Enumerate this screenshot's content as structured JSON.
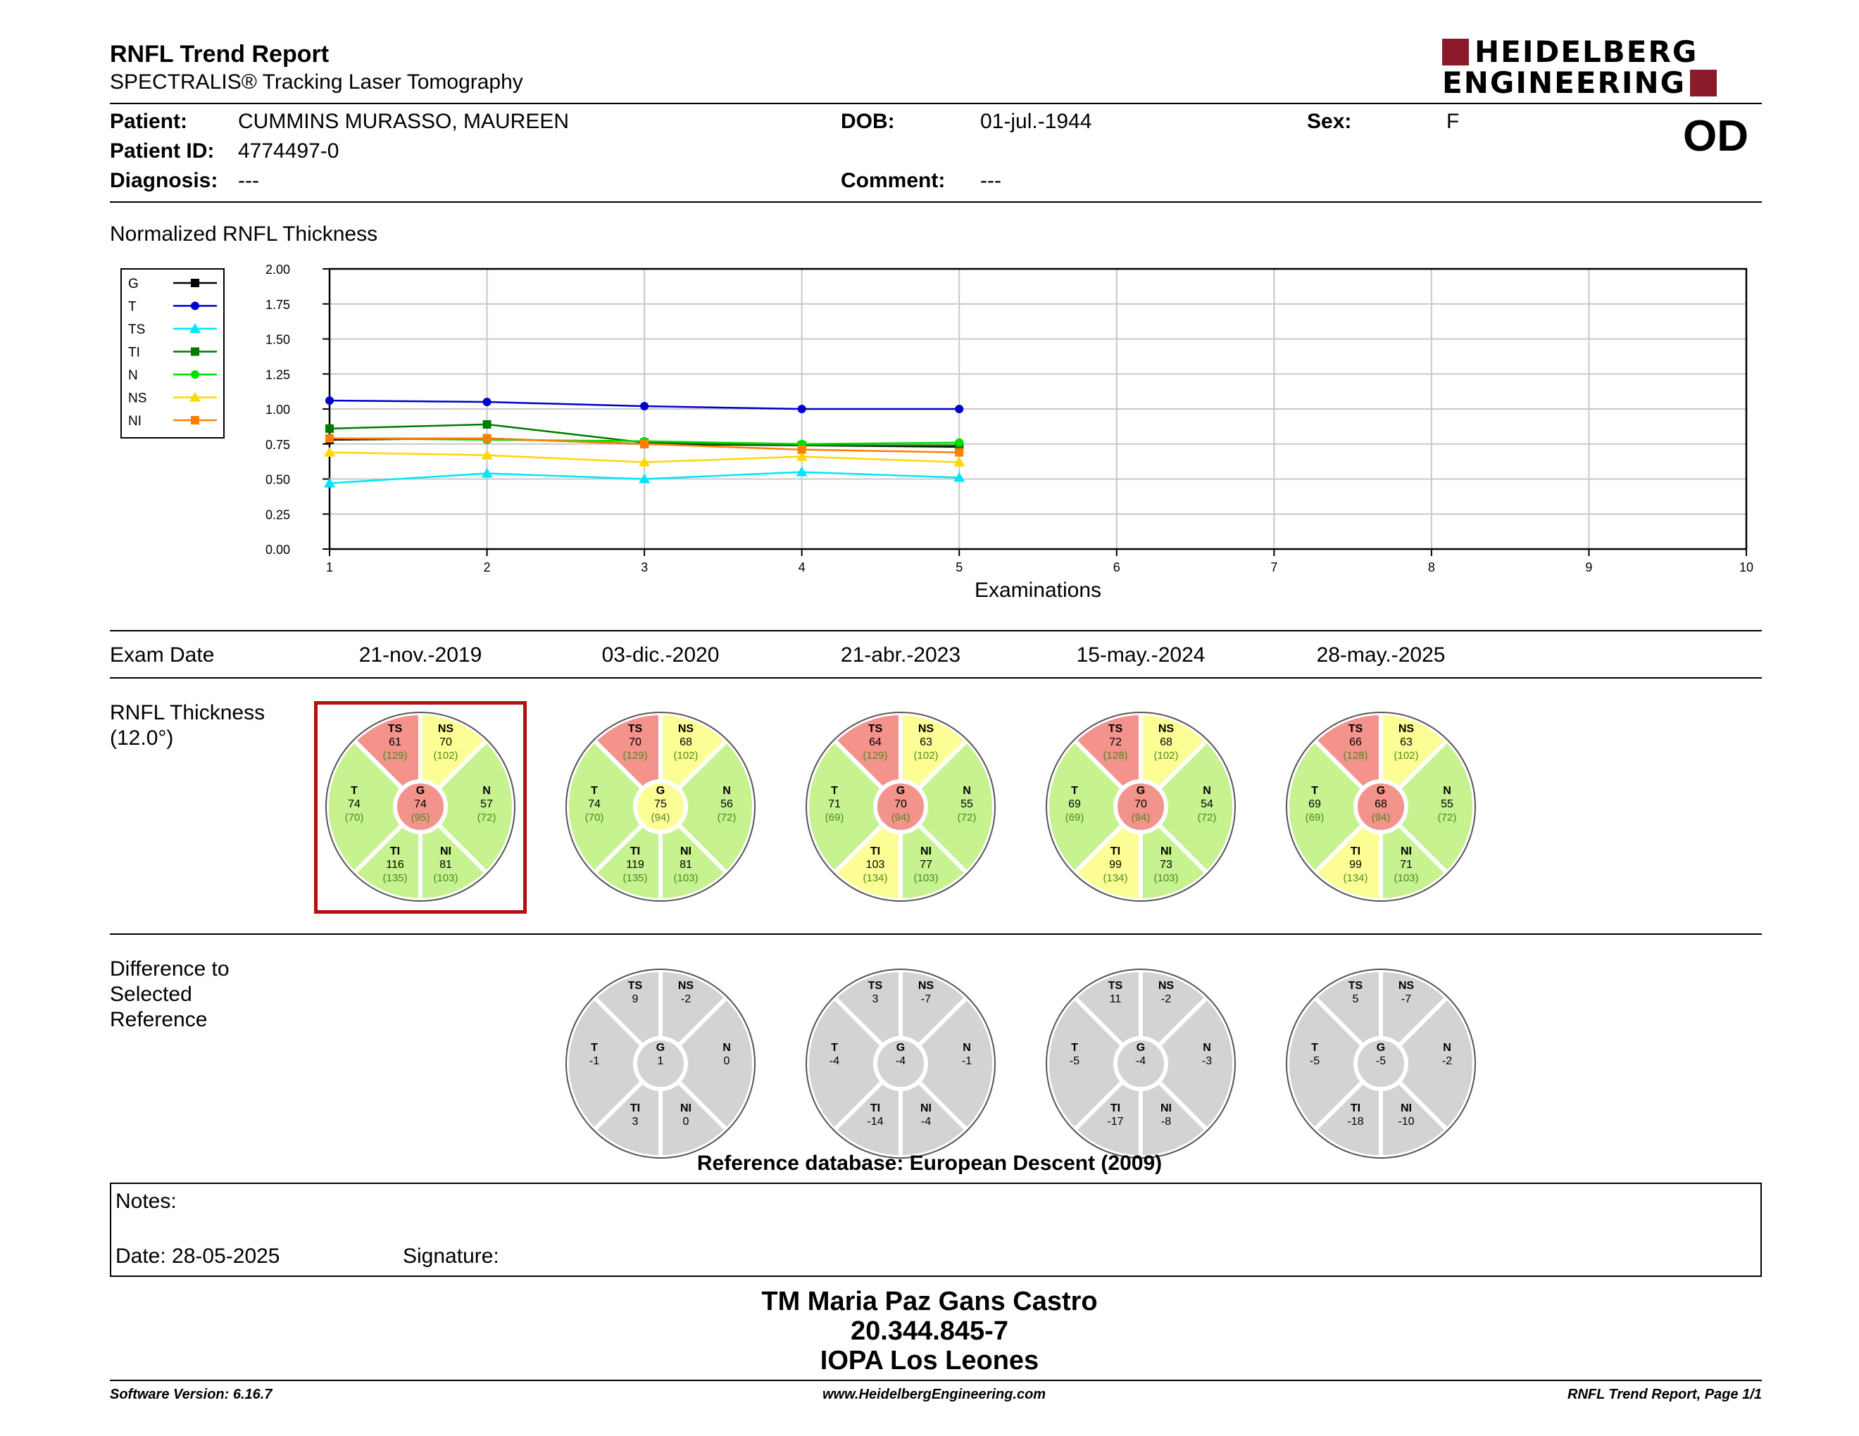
{
  "header": {
    "title": "RNFL Trend Report",
    "subtitle": "SPECTRALIS® Tracking Laser Tomography",
    "logo_line1": "HEIDELBERG",
    "logo_line2": "ENGINEERING",
    "eye": "OD"
  },
  "patient": {
    "patient_label": "Patient:",
    "name": "CUMMINS MURASSO, MAUREEN",
    "id_label": "Patient ID:",
    "id": "4774497-0",
    "diagnosis_label": "Diagnosis:",
    "diagnosis": "---",
    "dob_label": "DOB:",
    "dob": "01-jul.-1944",
    "comment_label": "Comment:",
    "comment": "---",
    "sex_label": "Sex:",
    "sex": "F"
  },
  "chart_title": "Normalized RNFL Thickness",
  "chart_data": {
    "type": "line",
    "xlabel": "Examinations",
    "xlim": [
      1,
      10
    ],
    "ylim": [
      0,
      2
    ],
    "x_ticks": [
      "1",
      "2",
      "3",
      "4",
      "5",
      "6",
      "7",
      "8",
      "9",
      "10"
    ],
    "y_ticks": [
      "0.00",
      "0.25",
      "0.50",
      "0.75",
      "1.00",
      "1.25",
      "1.50",
      "1.75",
      "2.00"
    ],
    "grid": true,
    "legend_position": "left",
    "series": [
      {
        "name": "G",
        "color": "#000000",
        "marker": "square",
        "values": [
          0.78,
          0.79,
          0.75,
          0.74,
          0.73
        ]
      },
      {
        "name": "T",
        "color": "#0000cc",
        "marker": "circle",
        "values": [
          1.06,
          1.05,
          1.02,
          1.0,
          1.0
        ]
      },
      {
        "name": "TS",
        "color": "#00e5ff",
        "marker": "triangle",
        "values": [
          0.47,
          0.54,
          0.5,
          0.55,
          0.51
        ]
      },
      {
        "name": "TI",
        "color": "#007a00",
        "marker": "square",
        "values": [
          0.86,
          0.89,
          0.76,
          0.74,
          0.74
        ]
      },
      {
        "name": "N",
        "color": "#00dd00",
        "marker": "circle",
        "values": [
          0.79,
          0.78,
          0.77,
          0.75,
          0.76
        ]
      },
      {
        "name": "NS",
        "color": "#ffd700",
        "marker": "triangle",
        "values": [
          0.69,
          0.67,
          0.62,
          0.66,
          0.62
        ]
      },
      {
        "name": "NI",
        "color": "#ff8000",
        "marker": "square",
        "values": [
          0.79,
          0.79,
          0.75,
          0.71,
          0.69
        ]
      }
    ]
  },
  "exam_label": "Exam Date",
  "exam_dates": [
    "21-nov.-2019",
    "03-dic.-2020",
    "21-abr.-2023",
    "15-may.-2024",
    "28-may.-2025"
  ],
  "rnfl_label_1": "RNFL Thickness",
  "rnfl_label_2": "(12.0°)",
  "diff_label_1": "Difference to",
  "diff_label_2": "Selected",
  "diff_label_3": "Reference",
  "sector_names": [
    "TS",
    "NS",
    "T",
    "G",
    "N",
    "TI",
    "NI"
  ],
  "colors": {
    "green": "#c6f28f",
    "yellow": "#fdfd96",
    "red": "#f4928c",
    "gray": "#d3d3d3",
    "ref_text": "#4a8b1f",
    "selected_border": "#b01111",
    "logo": "#8b1a2b"
  },
  "rnfl_exams": [
    {
      "TS": [
        "61",
        "(129)"
      ],
      "NS": [
        "70",
        "(102)"
      ],
      "T": [
        "74",
        "(70)"
      ],
      "G": [
        "74",
        "(95)"
      ],
      "N": [
        "57",
        "(72)"
      ],
      "TI": [
        "116",
        "(135)"
      ],
      "NI": [
        "81",
        "(103)"
      ],
      "fill": {
        "TS": "red",
        "NS": "yellow",
        "T": "green",
        "G": "red",
        "N": "green",
        "TI": "green",
        "NI": "green"
      }
    },
    {
      "TS": [
        "70",
        "(129)"
      ],
      "NS": [
        "68",
        "(102)"
      ],
      "T": [
        "74",
        "(70)"
      ],
      "G": [
        "75",
        "(94)"
      ],
      "N": [
        "56",
        "(72)"
      ],
      "TI": [
        "119",
        "(135)"
      ],
      "NI": [
        "81",
        "(103)"
      ],
      "fill": {
        "TS": "red",
        "NS": "yellow",
        "T": "green",
        "G": "yellow",
        "N": "green",
        "TI": "green",
        "NI": "green"
      }
    },
    {
      "TS": [
        "64",
        "(129)"
      ],
      "NS": [
        "63",
        "(102)"
      ],
      "T": [
        "71",
        "(69)"
      ],
      "G": [
        "70",
        "(94)"
      ],
      "N": [
        "55",
        "(72)"
      ],
      "TI": [
        "103",
        "(134)"
      ],
      "NI": [
        "77",
        "(103)"
      ],
      "fill": {
        "TS": "red",
        "NS": "yellow",
        "T": "green",
        "G": "red",
        "N": "green",
        "TI": "yellow",
        "NI": "green"
      }
    },
    {
      "TS": [
        "72",
        "(128)"
      ],
      "NS": [
        "68",
        "(102)"
      ],
      "T": [
        "69",
        "(69)"
      ],
      "G": [
        "70",
        "(94)"
      ],
      "N": [
        "54",
        "(72)"
      ],
      "TI": [
        "99",
        "(134)"
      ],
      "NI": [
        "73",
        "(103)"
      ],
      "fill": {
        "TS": "red",
        "NS": "yellow",
        "T": "green",
        "G": "red",
        "N": "green",
        "TI": "yellow",
        "NI": "green"
      }
    },
    {
      "TS": [
        "66",
        "(128)"
      ],
      "NS": [
        "63",
        "(102)"
      ],
      "T": [
        "69",
        "(69)"
      ],
      "G": [
        "68",
        "(94)"
      ],
      "N": [
        "55",
        "(72)"
      ],
      "TI": [
        "99",
        "(134)"
      ],
      "NI": [
        "71",
        "(103)"
      ],
      "fill": {
        "TS": "red",
        "NS": "yellow",
        "T": "green",
        "G": "red",
        "N": "green",
        "TI": "yellow",
        "NI": "green"
      }
    }
  ],
  "diff_exams": [
    {
      "TS": "9",
      "NS": "-2",
      "T": "-1",
      "G": "1",
      "N": "0",
      "TI": "3",
      "NI": "0"
    },
    {
      "TS": "3",
      "NS": "-7",
      "T": "-4",
      "G": "-4",
      "N": "-1",
      "TI": "-14",
      "NI": "-4"
    },
    {
      "TS": "11",
      "NS": "-2",
      "T": "-5",
      "G": "-4",
      "N": "-3",
      "TI": "-17",
      "NI": "-8"
    },
    {
      "TS": "5",
      "NS": "-7",
      "T": "-5",
      "G": "-5",
      "N": "-2",
      "TI": "-18",
      "NI": "-10"
    }
  ],
  "reference_db": "Reference database: European Descent (2009)",
  "notes": {
    "notes_label": "Notes:",
    "date_label": "Date: 28-05-2025",
    "signature_label": "Signature:"
  },
  "signature": {
    "line1": "TM Maria Paz Gans Castro",
    "line2": "20.344.845-7",
    "line3": "IOPA Los Leones"
  },
  "footer": {
    "version": "Software Version: 6.16.7",
    "website": "www.HeidelbergEngineering.com",
    "page": "RNFL Trend Report, Page 1/1"
  }
}
